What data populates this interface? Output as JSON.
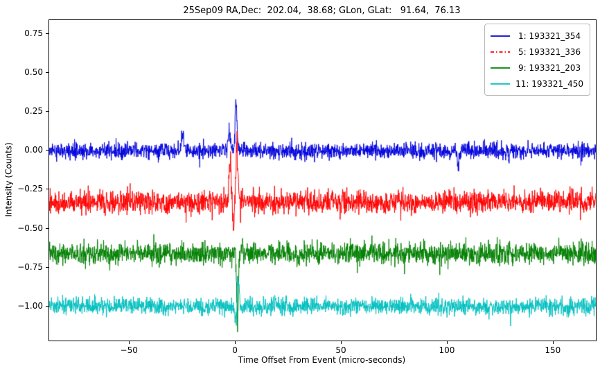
{
  "chart_data": {
    "type": "line",
    "title": "25Sep09 RA,Dec:  202.04,  38.68; GLon, GLat:   91.64,  76.13",
    "xlabel": "Time Offset From Event (micro-seconds)",
    "ylabel": "Intensity (Counts)",
    "xlim": [
      -88,
      170
    ],
    "ylim": [
      -1.22,
      0.84
    ],
    "xticks": [
      -50,
      0,
      50,
      100,
      150
    ],
    "yticks": [
      0.75,
      0.5,
      0.25,
      0.0,
      -0.25,
      -0.5,
      -0.75,
      -1.0
    ],
    "grid": false,
    "legend_position": "upper right",
    "points_per_series": 2200,
    "series": [
      {
        "name": " 1: 193321_354",
        "color": "#0000dd",
        "linestyle": "solid",
        "baseline": 0.0,
        "noise_sigma": 0.026,
        "seed": 1101,
        "spikes": [
          {
            "t": -25,
            "amp": 0.14,
            "width": 0.5
          },
          {
            "t": -3,
            "amp": 0.16,
            "width": 0.5
          },
          {
            "t": 0.2,
            "amp": 0.36,
            "width": 0.45
          },
          {
            "t": 105,
            "amp": -0.13,
            "width": 0.4
          }
        ]
      },
      {
        "name": " 5: 193321_336",
        "color": "#ff0000",
        "linestyle": "dashdot",
        "baseline": -0.33,
        "noise_sigma": 0.036,
        "seed": 2205,
        "spikes": [
          {
            "t": -2.5,
            "amp": 0.32,
            "width": 0.6
          },
          {
            "t": 0.5,
            "amp": 0.4,
            "width": 0.6
          },
          {
            "t": -1.0,
            "amp": -0.22,
            "width": 0.5
          }
        ]
      },
      {
        "name": " 9: 193321_203",
        "color": "#008000",
        "linestyle": "solid",
        "baseline": -0.66,
        "noise_sigma": 0.035,
        "seed": 3309,
        "spikes": [
          {
            "t": 0.8,
            "amp": -0.52,
            "width": 0.5
          },
          {
            "t": 0.1,
            "amp": 0.12,
            "width": 0.4
          }
        ]
      },
      {
        "name": "11: 193321_450",
        "color": "#00bfbf",
        "linestyle": "solid",
        "baseline": -1.0,
        "noise_sigma": 0.027,
        "seed": 4411,
        "spikes": [
          {
            "t": 1.2,
            "amp": 0.23,
            "width": 0.5
          },
          {
            "t": 0.2,
            "amp": -0.16,
            "width": 0.5
          }
        ]
      }
    ]
  }
}
